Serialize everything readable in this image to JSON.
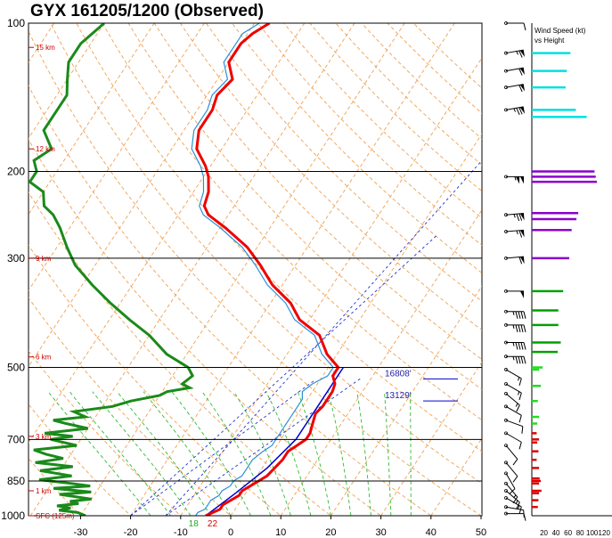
{
  "title": "GYX   161205/1200  (Observed)",
  "chart_data": {
    "type": "line",
    "title": "GYX   161205/1200  (Observed)",
    "x_axis": {
      "ticks": [
        -30,
        -20,
        -10,
        0,
        10,
        20,
        30,
        40,
        50
      ],
      "range": [
        -35,
        50
      ]
    },
    "pressure_ticks": [
      100,
      200,
      300,
      500,
      700,
      850,
      1000
    ],
    "height_labels": [
      {
        "label": "15 km",
        "p": 112
      },
      {
        "label": "12 km",
        "p": 180
      },
      {
        "label": "9 km",
        "p": 300
      },
      {
        "label": "6 km",
        "p": 476
      },
      {
        "label": "3 km",
        "p": 690
      },
      {
        "label": "1 km",
        "p": 890
      },
      {
        "label": "SFC (125m)",
        "p": 1000
      }
    ],
    "temperature": [
      [
        1000,
        -5
      ],
      [
        985,
        -4
      ],
      [
        970,
        -3
      ],
      [
        950,
        -3
      ],
      [
        930,
        -2
      ],
      [
        910,
        -1
      ],
      [
        890,
        -1
      ],
      [
        870,
        0
      ],
      [
        850,
        1
      ],
      [
        830,
        2
      ],
      [
        800,
        2.5
      ],
      [
        770,
        3
      ],
      [
        740,
        3
      ],
      [
        720,
        4
      ],
      [
        700,
        5
      ],
      [
        680,
        5
      ],
      [
        660,
        4.5
      ],
      [
        640,
        4
      ],
      [
        620,
        3.5
      ],
      [
        600,
        4
      ],
      [
        580,
        4
      ],
      [
        560,
        4
      ],
      [
        540,
        3.5
      ],
      [
        520,
        2
      ],
      [
        500,
        2
      ],
      [
        470,
        -2
      ],
      [
        430,
        -6
      ],
      [
        400,
        -12
      ],
      [
        370,
        -16
      ],
      [
        340,
        -22
      ],
      [
        310,
        -27
      ],
      [
        285,
        -32
      ],
      [
        260,
        -39
      ],
      [
        245,
        -44
      ],
      [
        235,
        -46
      ],
      [
        220,
        -47
      ],
      [
        205,
        -49
      ],
      [
        195,
        -51
      ],
      [
        180,
        -55
      ],
      [
        165,
        -57
      ],
      [
        150,
        -57
      ],
      [
        140,
        -58
      ],
      [
        130,
        -57
      ],
      [
        120,
        -60
      ],
      [
        110,
        -60
      ],
      [
        105,
        -59
      ],
      [
        100,
        -57
      ]
    ],
    "dewpoint": [
      [
        1000,
        -7
      ],
      [
        985,
        -7
      ],
      [
        970,
        -6
      ],
      [
        950,
        -6
      ],
      [
        930,
        -6
      ],
      [
        910,
        -5
      ],
      [
        890,
        -5
      ],
      [
        870,
        -4
      ],
      [
        850,
        -4
      ],
      [
        830,
        -3
      ],
      [
        800,
        -3
      ],
      [
        770,
        -3
      ],
      [
        740,
        -2
      ],
      [
        720,
        -1
      ],
      [
        700,
        -1
      ],
      [
        680,
        -1
      ],
      [
        660,
        -1
      ],
      [
        640,
        -1
      ],
      [
        620,
        -1
      ],
      [
        600,
        -1
      ],
      [
        580,
        -1
      ],
      [
        560,
        -2
      ],
      [
        540,
        -1
      ],
      [
        520,
        1
      ],
      [
        500,
        1
      ],
      [
        470,
        -3
      ],
      [
        430,
        -7
      ],
      [
        400,
        -13
      ],
      [
        370,
        -17
      ],
      [
        340,
        -23
      ],
      [
        310,
        -28
      ],
      [
        285,
        -33
      ],
      [
        260,
        -40
      ],
      [
        245,
        -45
      ],
      [
        235,
        -47
      ],
      [
        220,
        -48
      ],
      [
        205,
        -50
      ],
      [
        195,
        -52
      ],
      [
        180,
        -56
      ],
      [
        165,
        -58
      ],
      [
        150,
        -58
      ],
      [
        140,
        -59
      ],
      [
        130,
        -58
      ],
      [
        120,
        -61
      ],
      [
        110,
        -61
      ],
      [
        105,
        -61
      ],
      [
        100,
        -59
      ]
    ],
    "wetbulb": [
      [
        1000,
        -29
      ],
      [
        985,
        -31
      ],
      [
        975,
        -35
      ],
      [
        965,
        -33
      ],
      [
        955,
        -36
      ],
      [
        945,
        -32
      ],
      [
        935,
        -34
      ],
      [
        925,
        -30
      ],
      [
        905,
        -37
      ],
      [
        895,
        -31
      ],
      [
        880,
        -39
      ],
      [
        870,
        -32
      ],
      [
        860,
        -36
      ],
      [
        845,
        -43
      ],
      [
        830,
        -37
      ],
      [
        810,
        -44
      ],
      [
        795,
        -38
      ],
      [
        780,
        -46
      ],
      [
        765,
        -41
      ],
      [
        750,
        -45
      ],
      [
        735,
        -48
      ],
      [
        720,
        -40
      ],
      [
        700,
        -46
      ],
      [
        690,
        -42
      ],
      [
        680,
        -48
      ],
      [
        665,
        -40
      ],
      [
        650,
        -45
      ],
      [
        640,
        -48
      ],
      [
        630,
        -42
      ],
      [
        615,
        -45
      ],
      [
        600,
        -38
      ],
      [
        585,
        -35
      ],
      [
        570,
        -30
      ],
      [
        560,
        -29
      ],
      [
        550,
        -25
      ],
      [
        540,
        -27
      ],
      [
        520,
        -26
      ],
      [
        500,
        -28
      ],
      [
        470,
        -34
      ],
      [
        430,
        -40
      ],
      [
        400,
        -46
      ],
      [
        370,
        -52
      ],
      [
        340,
        -58
      ],
      [
        310,
        -64
      ],
      [
        285,
        -68
      ],
      [
        260,
        -72
      ],
      [
        245,
        -75
      ],
      [
        235,
        -78
      ],
      [
        220,
        -80
      ],
      [
        210,
        -84
      ],
      [
        200,
        -84
      ],
      [
        190,
        -86
      ],
      [
        180,
        -84
      ],
      [
        165,
        -88
      ],
      [
        150,
        -88
      ],
      [
        140,
        -88
      ],
      [
        130,
        -90
      ],
      [
        120,
        -92
      ],
      [
        110,
        -92
      ],
      [
        100,
        -90
      ]
    ],
    "parcel": [
      [
        1000,
        -5
      ],
      [
        900,
        -2
      ],
      [
        800,
        1
      ],
      [
        700,
        3
      ],
      [
        600,
        3
      ],
      [
        500,
        3
      ]
    ],
    "annotations": [
      {
        "label": "16808'",
        "p": 523
      },
      {
        "label": "13129'",
        "p": 580
      }
    ],
    "surface_labels": {
      "dewpoint": "18",
      "temperature": "22"
    },
    "wind_speed_profile": {
      "title_line1": "Wind Speed (kt)",
      "title_line2": "vs Height",
      "ticks": [
        "20",
        "40",
        "60",
        "80",
        "100",
        "120"
      ],
      "range": [
        0,
        130
      ],
      "bars": [
        {
          "p": 115,
          "speed": 64,
          "color": "#00e0e0"
        },
        {
          "p": 125,
          "speed": 58,
          "color": "#00e0e0"
        },
        {
          "p": 135,
          "speed": 56,
          "color": "#00e0e0"
        },
        {
          "p": 150,
          "speed": 73,
          "color": "#00e0e0"
        },
        {
          "p": 155,
          "speed": 91,
          "color": "#00e0e0"
        },
        {
          "p": 200,
          "speed": 104,
          "color": "#8a00cc"
        },
        {
          "p": 205,
          "speed": 106,
          "color": "#8a00cc"
        },
        {
          "p": 210,
          "speed": 108,
          "color": "#8a00cc"
        },
        {
          "p": 243,
          "speed": 77,
          "color": "#8a00cc"
        },
        {
          "p": 250,
          "speed": 74,
          "color": "#8a00cc"
        },
        {
          "p": 263,
          "speed": 66,
          "color": "#8a00cc"
        },
        {
          "p": 300,
          "speed": 62,
          "color": "#8a00cc"
        },
        {
          "p": 350,
          "speed": 52,
          "color": "#00a000"
        },
        {
          "p": 383,
          "speed": 44,
          "color": "#00a000"
        },
        {
          "p": 410,
          "speed": 44,
          "color": "#00a000"
        },
        {
          "p": 445,
          "speed": 48,
          "color": "#00a000"
        },
        {
          "p": 465,
          "speed": 43,
          "color": "#00a000"
        },
        {
          "p": 500,
          "speed": 18,
          "color": "#22dd22"
        },
        {
          "p": 505,
          "speed": 12,
          "color": "#22dd22"
        },
        {
          "p": 545,
          "speed": 15,
          "color": "#22dd22"
        },
        {
          "p": 585,
          "speed": 10,
          "color": "#22dd22"
        },
        {
          "p": 630,
          "speed": 12,
          "color": "#22dd22"
        },
        {
          "p": 650,
          "speed": 9,
          "color": "#22dd22"
        },
        {
          "p": 680,
          "speed": 8,
          "color": "#dd0000"
        },
        {
          "p": 700,
          "speed": 12,
          "color": "#dd0000"
        },
        {
          "p": 710,
          "speed": 9,
          "color": "#dd0000"
        },
        {
          "p": 740,
          "speed": 11,
          "color": "#dd0000"
        },
        {
          "p": 770,
          "speed": 8,
          "color": "#dd0000"
        },
        {
          "p": 800,
          "speed": 12,
          "color": "#dd0000"
        },
        {
          "p": 840,
          "speed": 13,
          "color": "#dd0000"
        },
        {
          "p": 850,
          "speed": 15,
          "color": "#dd0000"
        },
        {
          "p": 860,
          "speed": 12,
          "color": "#dd0000"
        },
        {
          "p": 890,
          "speed": 16,
          "color": "#dd0000"
        },
        {
          "p": 900,
          "speed": 12,
          "color": "#dd0000"
        },
        {
          "p": 930,
          "speed": 11,
          "color": "#dd0000"
        },
        {
          "p": 960,
          "speed": 10,
          "color": "#dd0000"
        }
      ]
    },
    "wind_barbs": [
      {
        "p": 100,
        "dir": 270,
        "speed": 10
      },
      {
        "p": 115,
        "dir": 260,
        "speed": 65
      },
      {
        "p": 125,
        "dir": 260,
        "speed": 60
      },
      {
        "p": 135,
        "dir": 260,
        "speed": 60
      },
      {
        "p": 150,
        "dir": 260,
        "speed": 75
      },
      {
        "p": 205,
        "dir": 270,
        "speed": 105
      },
      {
        "p": 245,
        "dir": 265,
        "speed": 75
      },
      {
        "p": 265,
        "dir": 265,
        "speed": 65
      },
      {
        "p": 300,
        "dir": 265,
        "speed": 60
      },
      {
        "p": 350,
        "dir": 270,
        "speed": 50
      },
      {
        "p": 385,
        "dir": 270,
        "speed": 45
      },
      {
        "p": 410,
        "dir": 270,
        "speed": 45
      },
      {
        "p": 445,
        "dir": 270,
        "speed": 45
      },
      {
        "p": 475,
        "dir": 270,
        "speed": 45
      },
      {
        "p": 505,
        "dir": 300,
        "speed": 15
      },
      {
        "p": 540,
        "dir": 300,
        "speed": 15
      },
      {
        "p": 565,
        "dir": 310,
        "speed": 15
      },
      {
        "p": 600,
        "dir": 300,
        "speed": 10
      },
      {
        "p": 640,
        "dir": 290,
        "speed": 10
      },
      {
        "p": 680,
        "dir": 300,
        "speed": 10
      },
      {
        "p": 720,
        "dir": 320,
        "speed": 10
      },
      {
        "p": 780,
        "dir": 320,
        "speed": 10
      },
      {
        "p": 820,
        "dir": 330,
        "speed": 10
      },
      {
        "p": 860,
        "dir": 320,
        "speed": 15
      },
      {
        "p": 890,
        "dir": 310,
        "speed": 15
      },
      {
        "p": 920,
        "dir": 300,
        "speed": 15
      },
      {
        "p": 960,
        "dir": 280,
        "speed": 10
      },
      {
        "p": 990,
        "dir": 270,
        "speed": 10
      }
    ],
    "grid": true,
    "colors": {
      "temperature": "#ee0000",
      "dewpoint": "#1a8a1a",
      "wetbulb_line": "#2b8fd6",
      "virtual_temp": "#0000cc",
      "isotherm": "#f0a050",
      "dry_adiabat": "#f0a050",
      "moist_adiabat": "#33bb33",
      "mixing_ratio": "#2233cc"
    }
  }
}
